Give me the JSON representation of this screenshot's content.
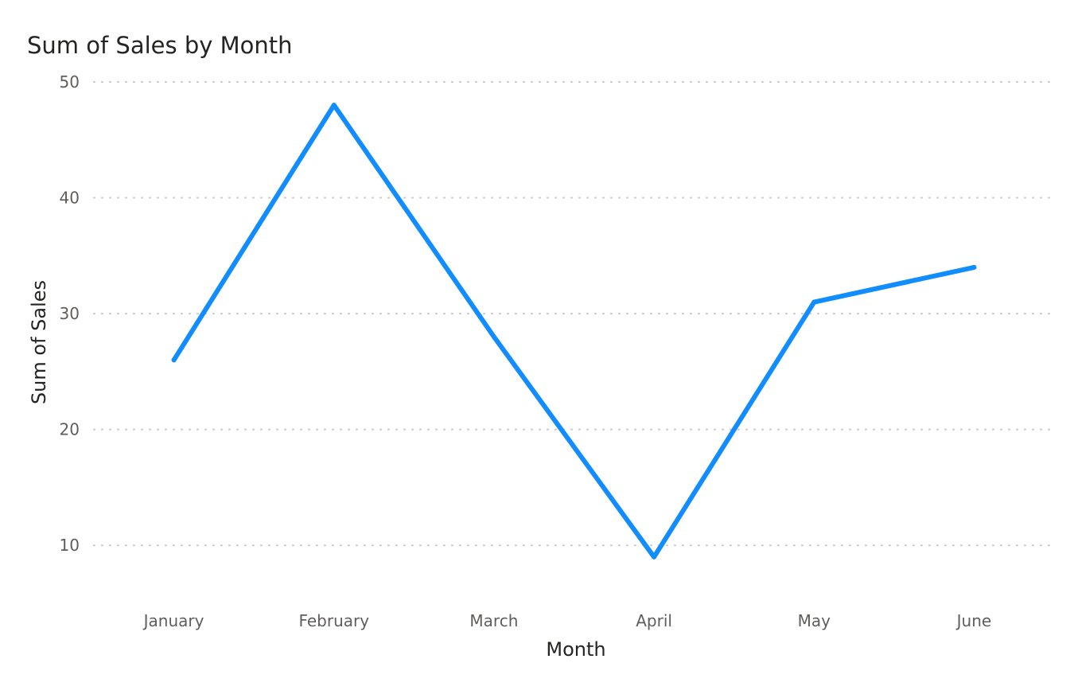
{
  "chart_data": {
    "type": "line",
    "title": "Sum of Sales by Month",
    "xlabel": "Month",
    "ylabel": "Sum of Sales",
    "categories": [
      "January",
      "February",
      "March",
      "April",
      "May",
      "June"
    ],
    "series": [
      {
        "values": [
          26,
          48,
          28,
          9,
          31,
          34
        ]
      }
    ],
    "ylim": [
      5,
      50
    ],
    "yticks": [
      10,
      20,
      30,
      40,
      50
    ],
    "grid": true,
    "line_color": "#118dff"
  }
}
